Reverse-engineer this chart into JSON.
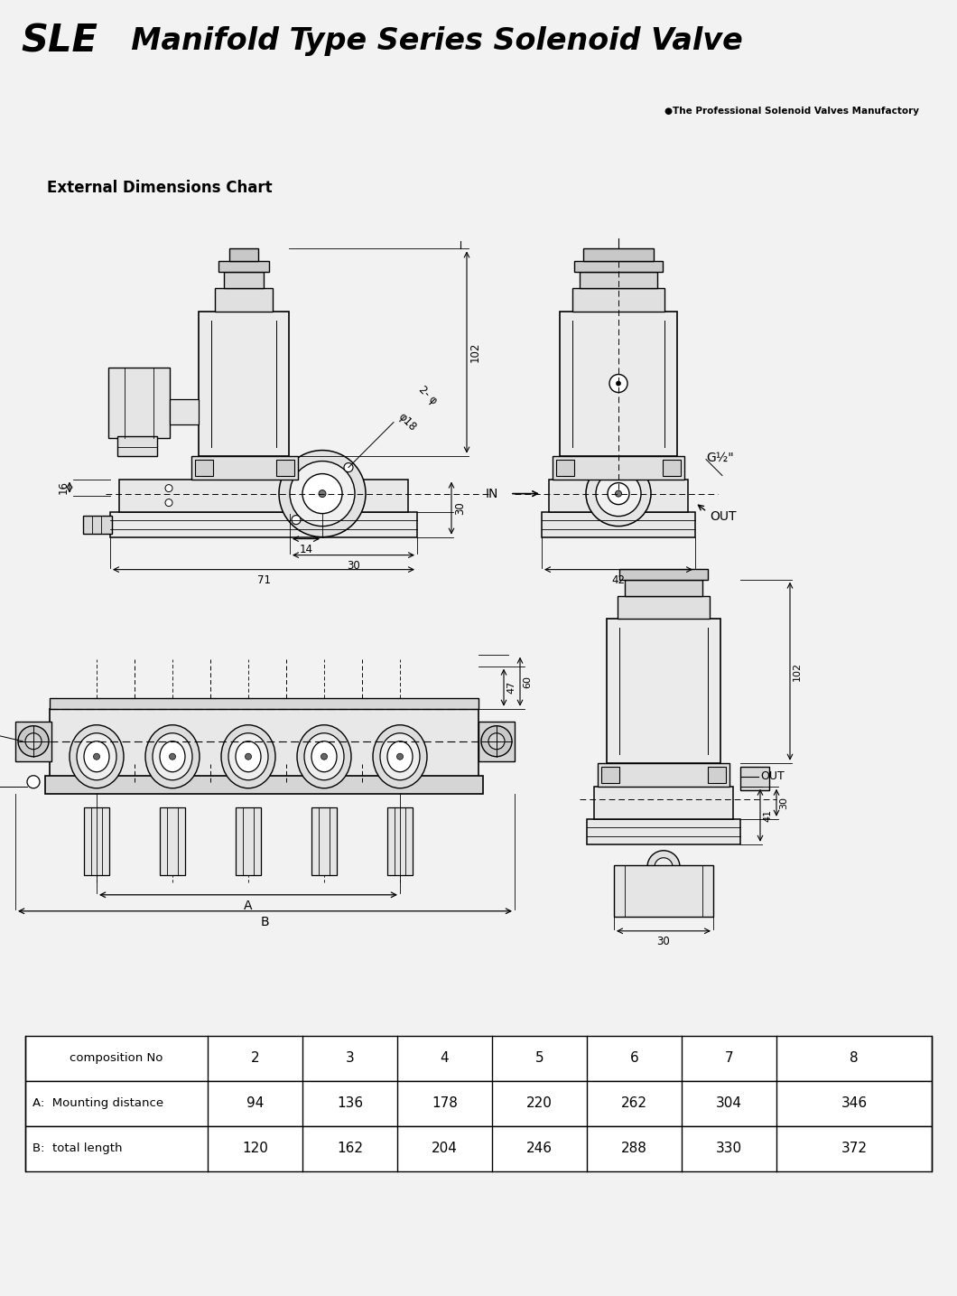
{
  "title_sle": "SLE",
  "title_main": "  Manifold Type Series Solenoid Valve",
  "subtitle": "●The Professional Solenoid Valves Manufactory",
  "section_title": "External Dimensions Chart",
  "bg_color": "#f2f2f2",
  "content_bg": "#ffffff",
  "header_bg": "#cccccc",
  "line_color": "#888888",
  "table_headers": [
    "composition No",
    "2",
    "3",
    "4",
    "5",
    "6",
    "7",
    "8"
  ],
  "table_row1_label": "A:  Mounting distance",
  "table_row1_vals": [
    "94",
    "136",
    "178",
    "220",
    "262",
    "304",
    "346"
  ],
  "table_row2_label": "B:  total length",
  "table_row2_vals": [
    "120",
    "162",
    "204",
    "246",
    "288",
    "330",
    "372"
  ]
}
